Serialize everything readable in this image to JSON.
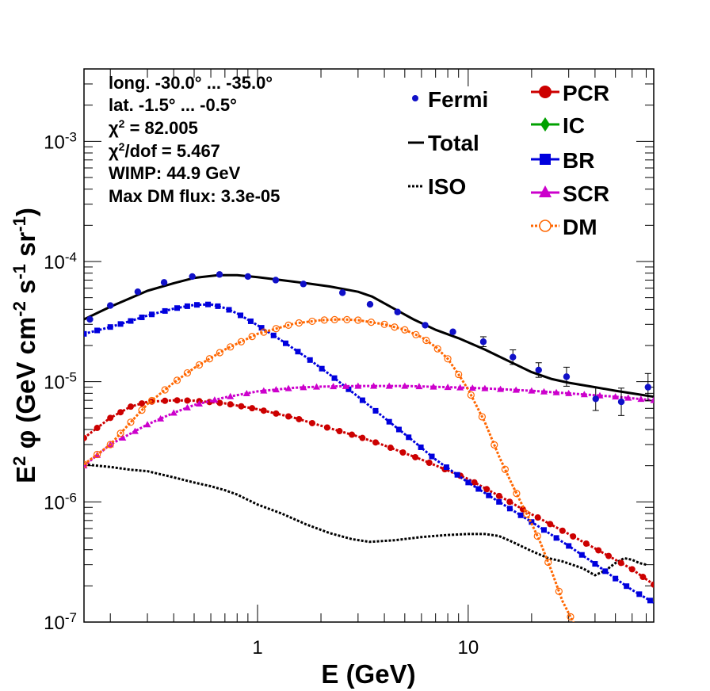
{
  "chart_data": {
    "type": "line",
    "title": "",
    "xlabel": "E (GeV)",
    "ylabel": "E2 φ (GeV cm-2 s-1 sr-1)",
    "xscale": "log",
    "yscale": "log",
    "xlim": [
      0.15,
      76
    ],
    "ylim": [
      1e-07,
      0.004
    ],
    "x_tick_labels": [
      {
        "v": 1,
        "text": "1"
      },
      {
        "v": 10,
        "text": "10"
      }
    ],
    "y_tick_labels": [
      {
        "v": 1e-07,
        "base": "10",
        "exp": "-7"
      },
      {
        "v": 1e-06,
        "base": "10",
        "exp": "-6"
      },
      {
        "v": 1e-05,
        "base": "10",
        "exp": "-5"
      },
      {
        "v": 0.0001,
        "base": "10",
        "exp": "-4"
      },
      {
        "v": 0.001,
        "base": "10",
        "exp": "-3"
      }
    ],
    "info_lines": [
      "long. -30.0° ... -35.0°",
      "lat. -1.5° ... -0.5°",
      "χ2 = 82.005",
      "χ2/dof = 5.467",
      "WIMP: 44.9 GeV",
      "Max DM flux: 3.3e-05"
    ],
    "legend_left": [
      {
        "label": "Fermi",
        "color": "#1010c8",
        "style": "points"
      },
      {
        "label": "Total",
        "color": "#000000",
        "style": "solid"
      },
      {
        "label": "ISO",
        "color": "#000000",
        "style": "dotted"
      }
    ],
    "legend_right": [
      {
        "label": "PCR",
        "color": "#cc0000",
        "marker": "circle"
      },
      {
        "label": "IC",
        "color": "#00a000",
        "marker": "diamond"
      },
      {
        "label": "BR",
        "color": "#0000dd",
        "marker": "square"
      },
      {
        "label": "SCR",
        "color": "#cc00cc",
        "marker": "triangle"
      },
      {
        "label": "DM",
        "color": "#ff6600",
        "marker": "open-circle"
      }
    ],
    "fermi": {
      "name": "Fermi",
      "color": "#1010c8",
      "points": [
        {
          "x": 0.16,
          "y": 3.3e-05,
          "err": 0
        },
        {
          "x": 0.2,
          "y": 4.3e-05,
          "err": 0
        },
        {
          "x": 0.27,
          "y": 5.6e-05,
          "err": 0
        },
        {
          "x": 0.36,
          "y": 6.7e-05,
          "err": 0
        },
        {
          "x": 0.49,
          "y": 7.5e-05,
          "err": 0
        },
        {
          "x": 0.66,
          "y": 7.8e-05,
          "err": 0
        },
        {
          "x": 0.9,
          "y": 7.5e-05,
          "err": 0
        },
        {
          "x": 1.22,
          "y": 7e-05,
          "err": 0
        },
        {
          "x": 1.65,
          "y": 6.5e-05,
          "err": 0
        },
        {
          "x": 2.53,
          "y": 5.5e-05,
          "err": 0
        },
        {
          "x": 3.42,
          "y": 4.4e-05,
          "err": 0
        },
        {
          "x": 4.62,
          "y": 3.8e-05,
          "err": 0
        },
        {
          "x": 6.25,
          "y": 2.95e-05,
          "err": 0
        },
        {
          "x": 8.46,
          "y": 2.6e-05,
          "err": 0
        },
        {
          "x": 11.8,
          "y": 2.15e-05,
          "err": 0.1
        },
        {
          "x": 16.3,
          "y": 1.6e-05,
          "err": 0.15
        },
        {
          "x": 21.6,
          "y": 1.25e-05,
          "err": 0.15
        },
        {
          "x": 29.3,
          "y": 1.1e-05,
          "err": 0.2
        },
        {
          "x": 40.3,
          "y": 7.2e-06,
          "err": 0.25
        },
        {
          "x": 53.3,
          "y": 6.8e-06,
          "err": 0.3
        },
        {
          "x": 71.4,
          "y": 9e-06,
          "err": 0.3
        }
      ]
    },
    "series": [
      {
        "name": "Total",
        "color": "#000000",
        "style": "solid",
        "marker": "none",
        "points": [
          [
            0.15,
            3.3e-05
          ],
          [
            0.2,
            4.2e-05
          ],
          [
            0.3,
            5.7e-05
          ],
          [
            0.4,
            6.6e-05
          ],
          [
            0.5,
            7.3e-05
          ],
          [
            0.65,
            7.7e-05
          ],
          [
            0.8,
            7.7e-05
          ],
          [
            1.0,
            7.4e-05
          ],
          [
            1.3,
            7e-05
          ],
          [
            1.7,
            6.6e-05
          ],
          [
            2.2,
            6.2e-05
          ],
          [
            3.0,
            5.6e-05
          ],
          [
            3.5,
            5.1e-05
          ],
          [
            4.5,
            4e-05
          ],
          [
            5.5,
            3.3e-05
          ],
          [
            7.0,
            2.7e-05
          ],
          [
            9.0,
            2.3e-05
          ],
          [
            12,
            1.85e-05
          ],
          [
            16,
            1.45e-05
          ],
          [
            20,
            1.2e-05
          ],
          [
            25,
            1.05e-05
          ],
          [
            30,
            9.8e-06
          ],
          [
            40,
            9e-06
          ],
          [
            50,
            8.4e-06
          ],
          [
            60,
            8e-06
          ],
          [
            76,
            7.5e-06
          ]
        ]
      },
      {
        "name": "ISO",
        "color": "#000000",
        "style": "dotted",
        "marker": "none",
        "points": [
          [
            0.15,
            2.05e-06
          ],
          [
            0.2,
            1.95e-06
          ],
          [
            0.25,
            1.85e-06
          ],
          [
            0.3,
            1.8e-06
          ],
          [
            0.4,
            1.6e-06
          ],
          [
            0.5,
            1.45e-06
          ],
          [
            0.6,
            1.35e-06
          ],
          [
            0.7,
            1.25e-06
          ],
          [
            0.8,
            1.15e-06
          ],
          [
            1.0,
            9.5e-07
          ],
          [
            1.3,
            8e-07
          ],
          [
            1.7,
            6.5e-07
          ],
          [
            2.2,
            5.5e-07
          ],
          [
            2.8,
            4.9e-07
          ],
          [
            3.4,
            4.65e-07
          ],
          [
            4.5,
            4.8e-07
          ],
          [
            6.0,
            5.1e-07
          ],
          [
            8.0,
            5.3e-07
          ],
          [
            10,
            5.4e-07
          ],
          [
            12,
            5.4e-07
          ],
          [
            14,
            5.2e-07
          ],
          [
            16,
            4.7e-07
          ],
          [
            20,
            3.9e-07
          ],
          [
            24,
            3.4e-07
          ],
          [
            28,
            3.2e-07
          ],
          [
            35,
            2.8e-07
          ],
          [
            40,
            2.45e-07
          ],
          [
            45,
            2.7e-07
          ],
          [
            50,
            3.1e-07
          ],
          [
            55,
            3.4e-07
          ],
          [
            60,
            3.3e-07
          ],
          [
            65,
            3.1e-07
          ],
          [
            70,
            3e-07
          ]
        ]
      },
      {
        "name": "PCR",
        "color": "#cc0000",
        "style": "dotted",
        "marker": "circle",
        "points": [
          [
            0.15,
            3.4e-06
          ],
          [
            0.2,
            5e-06
          ],
          [
            0.25,
            6.2e-06
          ],
          [
            0.3,
            6.8e-06
          ],
          [
            0.4,
            7e-06
          ],
          [
            0.5,
            6.95e-06
          ],
          [
            0.7,
            6.6e-06
          ],
          [
            1.0,
            5.9e-06
          ],
          [
            1.5,
            5e-06
          ],
          [
            2.0,
            4.3e-06
          ],
          [
            3.0,
            3.5e-06
          ],
          [
            4.0,
            2.95e-06
          ],
          [
            6.0,
            2.25e-06
          ],
          [
            10,
            1.55e-06
          ],
          [
            15,
            1.05e-06
          ],
          [
            20,
            7.9e-07
          ],
          [
            30,
            5.4e-07
          ],
          [
            40,
            4.1e-07
          ],
          [
            50,
            3.3e-07
          ],
          [
            60,
            2.75e-07
          ],
          [
            76,
            2.05e-07
          ]
        ]
      },
      {
        "name": "BR",
        "color": "#0000dd",
        "style": "dotted",
        "marker": "square",
        "points": [
          [
            0.15,
            2.5e-05
          ],
          [
            0.2,
            2.85e-05
          ],
          [
            0.25,
            3.2e-05
          ],
          [
            0.3,
            3.55e-05
          ],
          [
            0.4,
            4.05e-05
          ],
          [
            0.5,
            4.35e-05
          ],
          [
            0.6,
            4.4e-05
          ],
          [
            0.7,
            4.1e-05
          ],
          [
            0.8,
            3.7e-05
          ],
          [
            1.0,
            2.95e-05
          ],
          [
            1.3,
            2.2e-05
          ],
          [
            1.7,
            1.6e-05
          ],
          [
            2.2,
            1.15e-05
          ],
          [
            3.0,
            7.5e-06
          ],
          [
            4.0,
            5e-06
          ],
          [
            5.5,
            3.2e-06
          ],
          [
            7.0,
            2.25e-06
          ],
          [
            10,
            1.45e-06
          ],
          [
            14,
            1e-06
          ],
          [
            20,
            6.8e-07
          ],
          [
            30,
            4.3e-07
          ],
          [
            40,
            3.05e-07
          ],
          [
            50,
            2.3e-07
          ],
          [
            60,
            1.85e-07
          ],
          [
            76,
            1.45e-07
          ]
        ]
      },
      {
        "name": "SCR",
        "color": "#cc00cc",
        "style": "dotted",
        "marker": "triangle",
        "points": [
          [
            0.15,
            2e-06
          ],
          [
            0.2,
            3e-06
          ],
          [
            0.3,
            4.4e-06
          ],
          [
            0.4,
            5.5e-06
          ],
          [
            0.5,
            6.4e-06
          ],
          [
            0.7,
            7.4e-06
          ],
          [
            1.0,
            8.3e-06
          ],
          [
            1.5,
            8.9e-06
          ],
          [
            2.0,
            9.1e-06
          ],
          [
            3.0,
            9.2e-06
          ],
          [
            5.0,
            9.2e-06
          ],
          [
            8.0,
            9e-06
          ],
          [
            12,
            8.8e-06
          ],
          [
            20,
            8.4e-06
          ],
          [
            30,
            8e-06
          ],
          [
            50,
            7.5e-06
          ],
          [
            76,
            7e-06
          ]
        ]
      },
      {
        "name": "DM",
        "color": "#ff6600",
        "style": "dotted",
        "marker": "open-circle",
        "points": [
          [
            0.15,
            2.05e-06
          ],
          [
            0.2,
            3e-06
          ],
          [
            0.25,
            4.6e-06
          ],
          [
            0.3,
            6.5e-06
          ],
          [
            0.4,
            9.8e-06
          ],
          [
            0.5,
            1.3e-05
          ],
          [
            0.7,
            1.85e-05
          ],
          [
            1.0,
            2.5e-05
          ],
          [
            1.5,
            3.05e-05
          ],
          [
            2.0,
            3.25e-05
          ],
          [
            2.5,
            3.3e-05
          ],
          [
            3.0,
            3.25e-05
          ],
          [
            4.0,
            3e-05
          ],
          [
            5.0,
            2.7e-05
          ],
          [
            6.0,
            2.35e-05
          ],
          [
            7.0,
            1.95e-05
          ],
          [
            8.0,
            1.55e-05
          ],
          [
            9.0,
            1.15e-05
          ],
          [
            10,
            8.6e-06
          ],
          [
            12,
            4.6e-06
          ],
          [
            14,
            2.4e-06
          ],
          [
            16,
            1.45e-06
          ],
          [
            18,
            9.5e-07
          ],
          [
            20,
            6.6e-07
          ],
          [
            22,
            4.6e-07
          ],
          [
            25,
            2.6e-07
          ],
          [
            28,
            1.5e-07
          ],
          [
            32,
            9.5e-08
          ]
        ]
      }
    ]
  }
}
